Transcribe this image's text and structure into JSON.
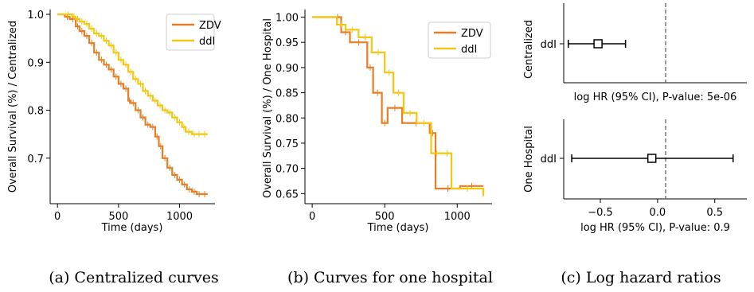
{
  "colors": {
    "zdv": "#e87e24",
    "ddi": "#f2c814",
    "axis": "#000000",
    "ref_line": "#555555"
  },
  "chart_data": [
    {
      "type": "line",
      "step": true,
      "xlabel": "Time (days)",
      "ylabel": "Overall Survival (%) / Centralized",
      "xlim": [
        -60,
        1290
      ],
      "ylim": [
        0.605,
        1.01
      ],
      "xticks": [
        0,
        500,
        1000
      ],
      "yticks": [
        0.7,
        0.8,
        0.9,
        1.0
      ],
      "ytick_labels": [
        "0.7",
        "0.8",
        "0.9",
        "1.0"
      ],
      "legend_position": "top-right",
      "censor_marks": true,
      "series": [
        {
          "name": "ZDV",
          "x": [
            0,
            60,
            100,
            150,
            180,
            220,
            260,
            300,
            340,
            380,
            420,
            460,
            500,
            540,
            580,
            600,
            640,
            680,
            720,
            760,
            800,
            830,
            860,
            900,
            940,
            980,
            1020,
            1060,
            1100,
            1140,
            1180,
            1230
          ],
          "y": [
            1.0,
            0.995,
            0.99,
            0.975,
            0.965,
            0.955,
            0.94,
            0.92,
            0.905,
            0.895,
            0.885,
            0.87,
            0.855,
            0.845,
            0.82,
            0.815,
            0.8,
            0.785,
            0.77,
            0.765,
            0.745,
            0.725,
            0.7,
            0.68,
            0.665,
            0.655,
            0.645,
            0.635,
            0.63,
            0.625,
            0.625,
            0.625
          ]
        },
        {
          "name": "ddI",
          "x": [
            0,
            50,
            120,
            150,
            180,
            220,
            260,
            300,
            340,
            380,
            420,
            460,
            500,
            540,
            580,
            620,
            660,
            700,
            740,
            780,
            820,
            860,
            900,
            940,
            980,
            1020,
            1050,
            1100,
            1140,
            1180,
            1230
          ],
          "y": [
            1.0,
            1.0,
            0.995,
            0.99,
            0.985,
            0.98,
            0.97,
            0.96,
            0.955,
            0.945,
            0.935,
            0.92,
            0.905,
            0.895,
            0.88,
            0.865,
            0.855,
            0.84,
            0.83,
            0.82,
            0.81,
            0.8,
            0.795,
            0.785,
            0.775,
            0.765,
            0.755,
            0.75,
            0.75,
            0.75,
            0.75
          ]
        }
      ]
    },
    {
      "type": "line",
      "step": true,
      "xlabel": "Time (days)",
      "ylabel": "Overall Survival (%) / One Hospital",
      "xlim": [
        -50,
        1240
      ],
      "ylim": [
        0.63,
        1.015
      ],
      "xticks": [
        0,
        500,
        1000
      ],
      "yticks": [
        0.65,
        0.7,
        0.75,
        0.8,
        0.85,
        0.9,
        0.95,
        1.0
      ],
      "ytick_labels": [
        "0.65",
        "0.70",
        "0.75",
        "0.80",
        "0.85",
        "0.90",
        "0.95",
        "1.00"
      ],
      "legend_position": "top-right",
      "censor_marks": true,
      "series": [
        {
          "name": "ZDV",
          "x": [
            0,
            150,
            200,
            260,
            380,
            420,
            480,
            520,
            620,
            810,
            850,
            1020,
            1180
          ],
          "y": [
            1.0,
            1.0,
            0.97,
            0.95,
            0.9,
            0.85,
            0.79,
            0.82,
            0.79,
            0.77,
            0.66,
            0.665,
            0.665
          ]
        },
        {
          "name": "ddI",
          "x": [
            0,
            170,
            230,
            320,
            410,
            500,
            560,
            630,
            720,
            820,
            900,
            960,
            1180
          ],
          "y": [
            1.0,
            0.985,
            0.975,
            0.96,
            0.93,
            0.89,
            0.85,
            0.81,
            0.79,
            0.73,
            0.73,
            0.66,
            0.645
          ]
        }
      ]
    },
    {
      "type": "forest",
      "title": "",
      "xlabel": "log HR (95% CI), P-value: 5e-06",
      "ylabel": "Centralized",
      "category": "ddI",
      "estimate": -0.52,
      "ci": [
        -0.78,
        -0.28
      ],
      "ref_x": 0
    },
    {
      "type": "forest",
      "xlabel": "log HR (95% CI), P-value: 0.9",
      "ylabel": "One Hospital",
      "category": "ddI",
      "estimate": -0.05,
      "ci": [
        -0.75,
        0.66
      ],
      "ref_x": 0,
      "xlim": [
        -0.82,
        0.78
      ],
      "xticks": [
        -0.5,
        0.0,
        0.5
      ],
      "xtick_labels": [
        "−0.5",
        "0.0",
        "0.5"
      ]
    }
  ],
  "captions": [
    "(a)  Centralized curves",
    "(b)  Curves for one hospital",
    "(c)  Log hazard ratios"
  ]
}
